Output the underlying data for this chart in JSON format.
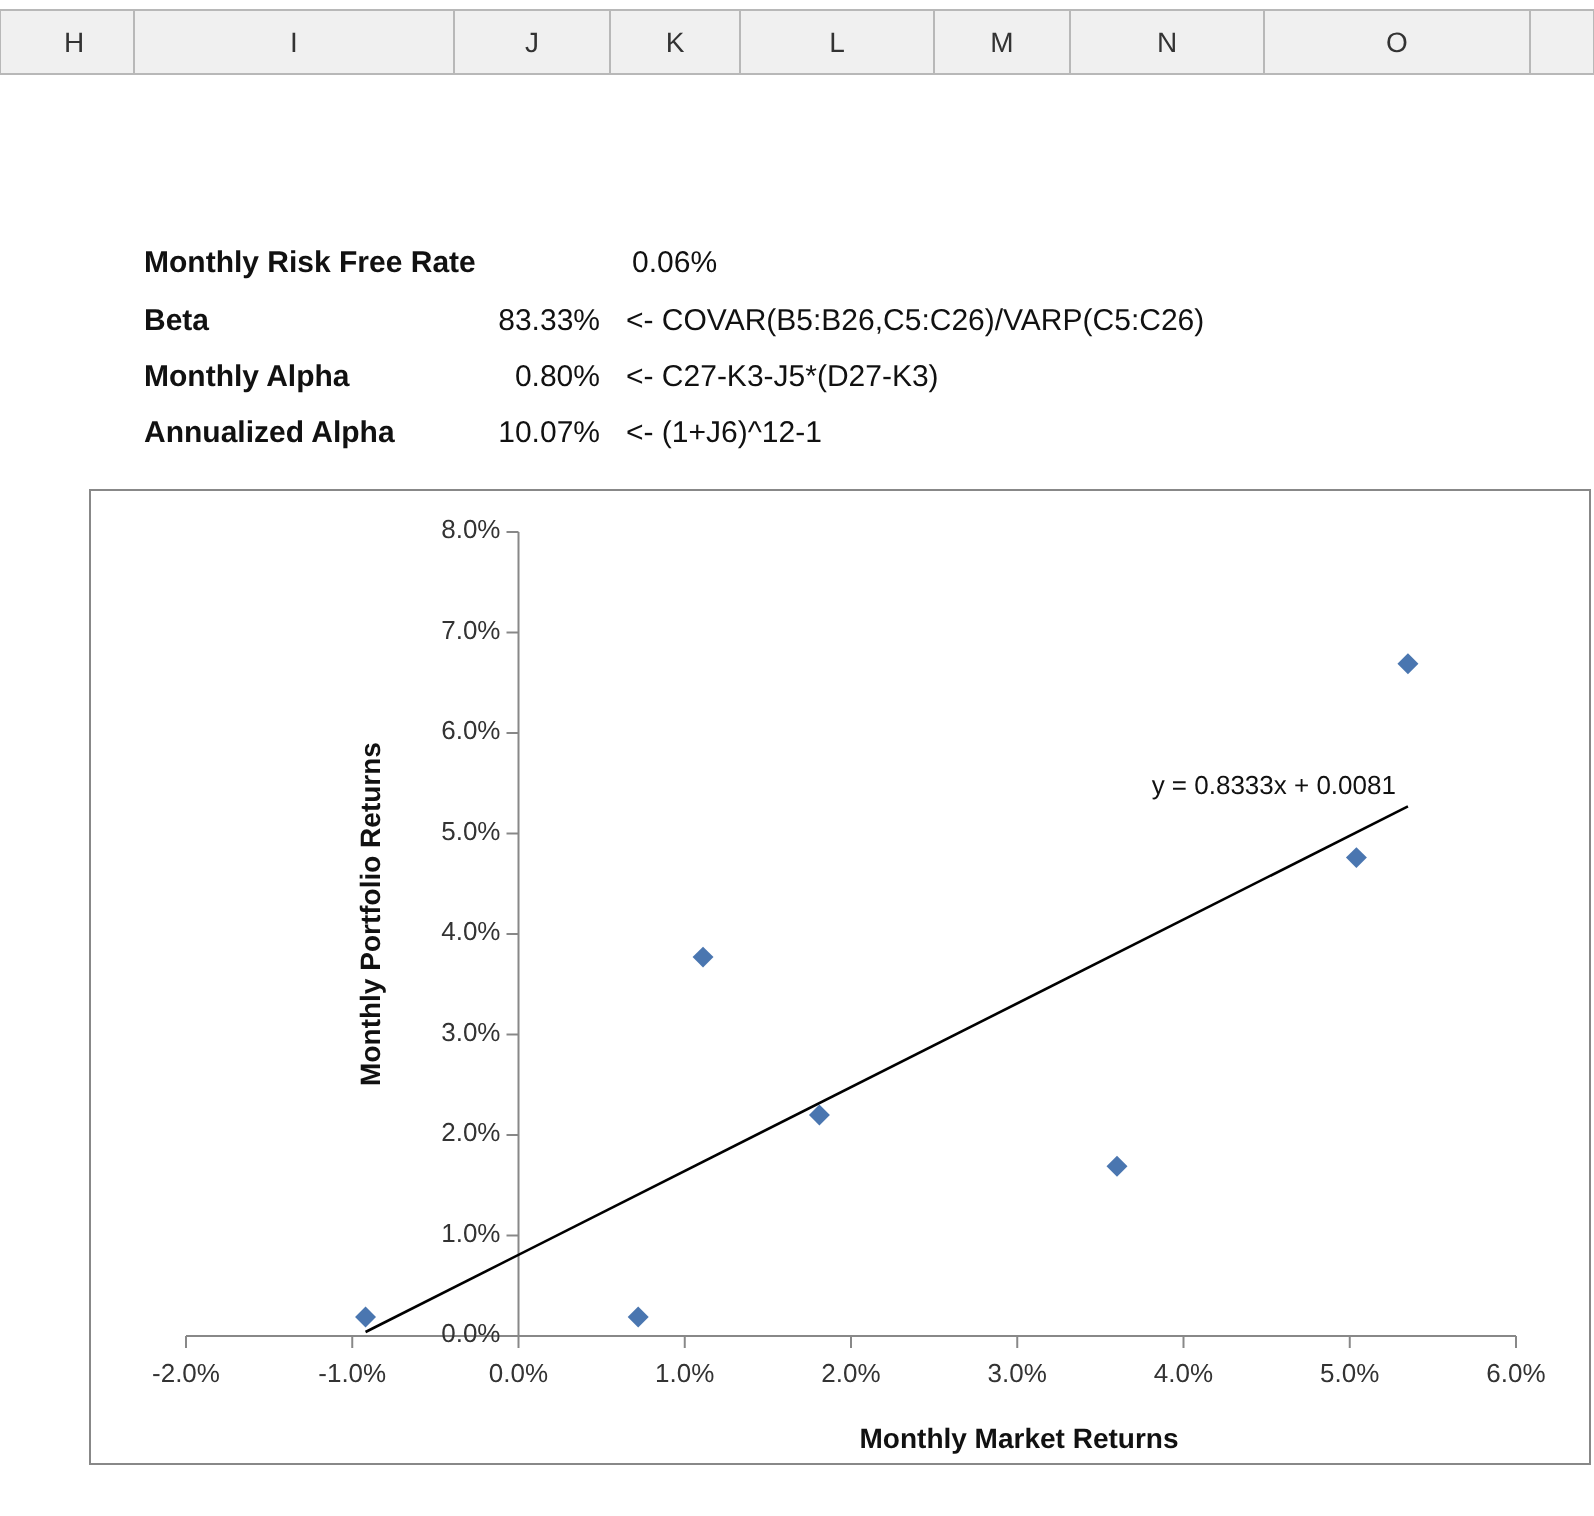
{
  "chart_data": {
    "type": "scatter",
    "xlabel": "Monthly Market Returns",
    "ylabel": "Monthly Portfolio Returns",
    "xlim": [
      -2,
      6
    ],
    "xticks": [
      {
        "value": -2,
        "label": "-2.0%"
      },
      {
        "value": -1,
        "label": "-1.0%"
      },
      {
        "value": 0,
        "label": "0.0%"
      },
      {
        "value": 1,
        "label": "1.0%"
      },
      {
        "value": 2,
        "label": "2.0%"
      },
      {
        "value": 3,
        "label": "3.0%"
      },
      {
        "value": 4,
        "label": "4.0%"
      },
      {
        "value": 5,
        "label": "5.0%"
      },
      {
        "value": 6,
        "label": "6.0%"
      }
    ],
    "ylim": [
      0,
      8
    ],
    "yticks": [
      {
        "value": 0,
        "label": "0.0%"
      },
      {
        "value": 1,
        "label": "1.0%"
      },
      {
        "value": 2,
        "label": "2.0%"
      },
      {
        "value": 3,
        "label": "3.0%"
      },
      {
        "value": 4,
        "label": "4.0%"
      },
      {
        "value": 5,
        "label": "5.0%"
      },
      {
        "value": 6,
        "label": "6.0%"
      },
      {
        "value": 7,
        "label": "7.0%"
      },
      {
        "value": 8,
        "label": "8.0%"
      }
    ],
    "grid": false,
    "series": [
      {
        "color": "#4a76b0",
        "marker": "diamond",
        "x": [
          -0.92,
          0.72,
          1.11,
          1.81,
          3.6,
          5.04,
          5.35
        ],
        "values": [
          0.19,
          0.19,
          3.77,
          2.2,
          1.69,
          4.76,
          6.69
        ]
      },
      {
        "type": "line",
        "color": "#000000",
        "x": [
          -0.92,
          5.35
        ],
        "values": [
          0.04,
          5.27
        ]
      }
    ],
    "annotations": [
      "H",
      "I",
      "J",
      "K",
      "L",
      "M",
      "N",
      "O",
      "Monthly Risk Free Rate",
      "0.06%",
      "Beta",
      "83.33%",
      "<- COVAR(B5:B26,C5:C26)/VARP(C5:C26)",
      "Monthly Alpha",
      "0.80%",
      "<- C27-K3-J5*(D27-K3)",
      "Annualized Alpha",
      "10.07%",
      "<- (1+J6)^12-1",
      {
        "text": "y = 0.8333x + 0.0081",
        "x": 5.35,
        "y": 5.27
      }
    ]
  }
}
